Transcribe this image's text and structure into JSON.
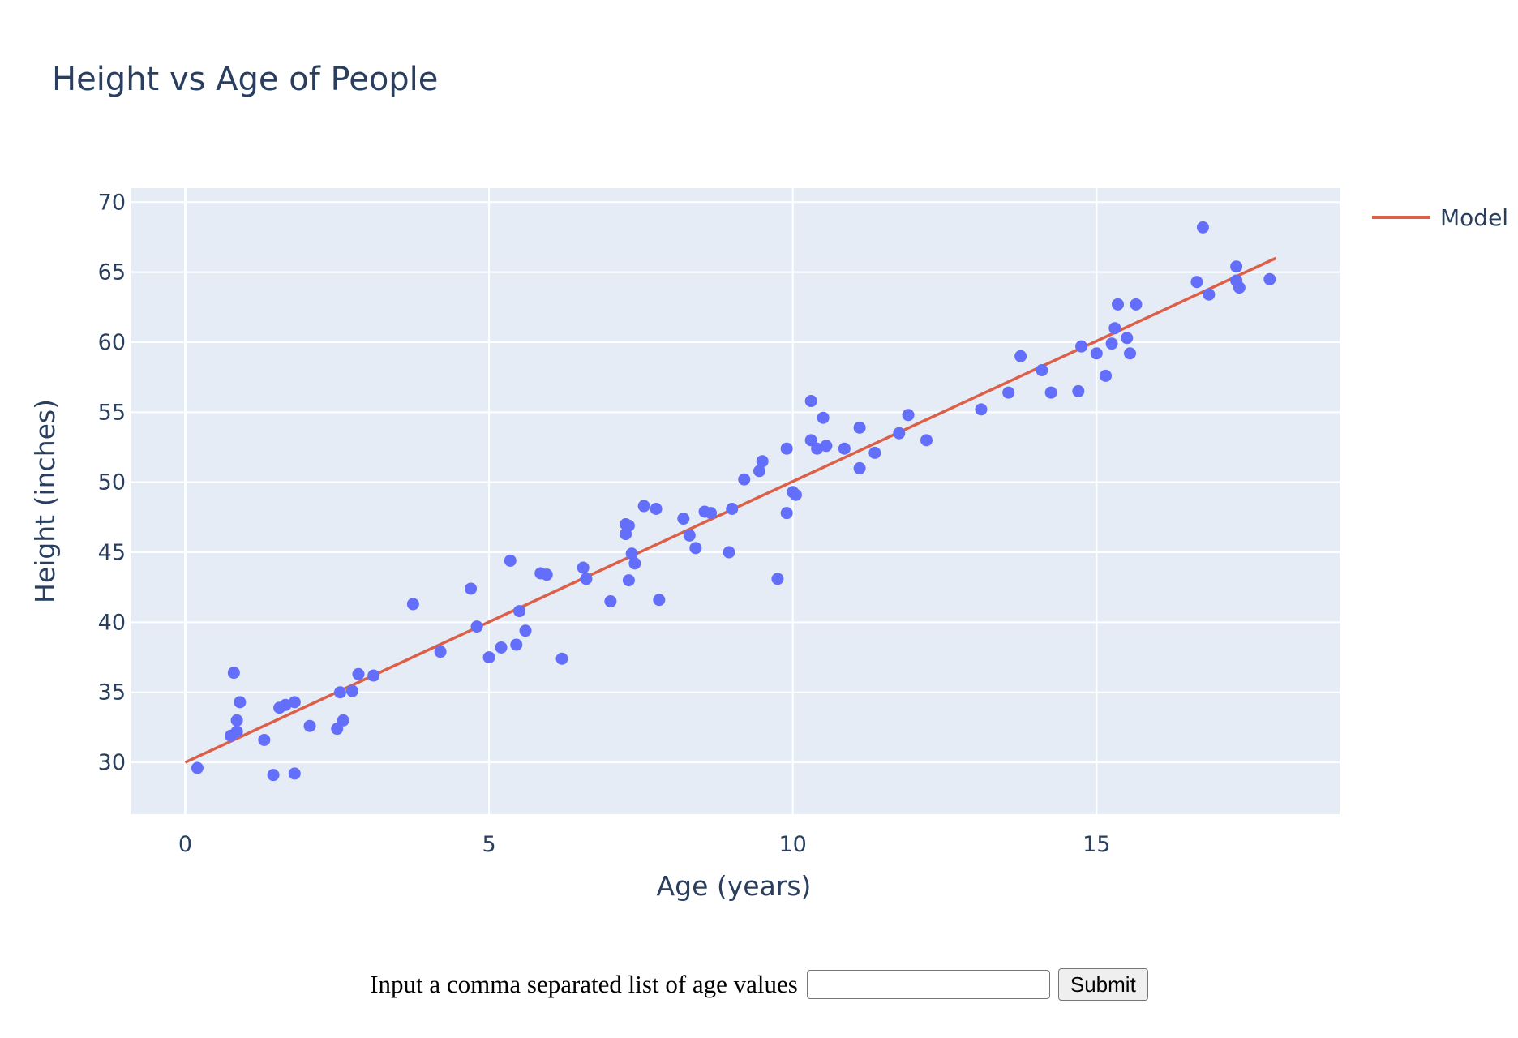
{
  "chart_data": {
    "type": "scatter",
    "title": "Height vs Age of People",
    "xlabel": "Age (years)",
    "ylabel": "Height (inches)",
    "xlim": [
      -0.9,
      19.0
    ],
    "ylim": [
      26.3,
      71.0
    ],
    "xticks": [
      0,
      5,
      10,
      15
    ],
    "yticks": [
      30,
      35,
      40,
      45,
      50,
      55,
      60,
      65,
      70
    ],
    "grid": true,
    "legend_position": "top-right",
    "colors": {
      "points": "#636efa",
      "model": "#dd5f48",
      "plot_bg": "#e5ecf6",
      "text": "#2a3f5f"
    },
    "points": {
      "x": [
        0.2,
        0.8,
        0.75,
        0.85,
        0.9,
        0.85,
        1.3,
        1.45,
        1.55,
        1.65,
        1.8,
        1.8,
        2.05,
        2.5,
        2.55,
        2.6,
        2.75,
        2.85,
        3.1,
        3.75,
        4.2,
        4.7,
        4.8,
        5.0,
        5.2,
        5.35,
        5.45,
        5.5,
        5.6,
        5.85,
        5.95,
        6.2,
        6.55,
        6.6,
        7.0,
        7.25,
        7.25,
        7.3,
        7.3,
        7.35,
        7.4,
        7.55,
        7.75,
        7.8,
        8.2,
        8.3,
        8.4,
        8.55,
        8.65,
        8.95,
        9.0,
        9.2,
        9.45,
        9.5,
        9.75,
        9.9,
        9.9,
        10.0,
        10.05,
        10.3,
        10.3,
        10.4,
        10.5,
        10.55,
        10.85,
        11.1,
        11.1,
        11.35,
        11.75,
        11.9,
        12.2,
        13.1,
        13.55,
        13.75,
        14.1,
        14.25,
        14.7,
        14.75,
        15.0,
        15.15,
        15.25,
        15.3,
        15.35,
        15.5,
        15.55,
        15.65,
        16.65,
        16.75,
        16.85,
        17.3,
        17.3,
        17.35,
        17.85
      ],
      "y": [
        29.6,
        36.4,
        31.9,
        33.0,
        34.3,
        32.2,
        31.6,
        29.1,
        33.9,
        34.1,
        34.3,
        29.2,
        32.6,
        32.4,
        35.0,
        33.0,
        35.1,
        36.3,
        36.2,
        41.3,
        37.9,
        42.4,
        39.7,
        37.5,
        38.2,
        44.4,
        38.4,
        40.8,
        39.4,
        43.5,
        43.4,
        37.4,
        43.9,
        43.1,
        41.5,
        46.3,
        47.0,
        43.0,
        46.9,
        44.9,
        44.2,
        48.3,
        48.1,
        41.6,
        47.4,
        46.2,
        45.3,
        47.9,
        47.8,
        45.0,
        48.1,
        50.2,
        50.8,
        51.5,
        43.1,
        52.4,
        47.8,
        49.3,
        49.1,
        55.8,
        53.0,
        52.4,
        54.6,
        52.6,
        52.4,
        53.9,
        51.0,
        52.1,
        53.5,
        54.8,
        53.0,
        55.2,
        56.4,
        59.0,
        58.0,
        56.4,
        56.5,
        59.7,
        59.2,
        57.6,
        59.9,
        61.0,
        62.7,
        60.3,
        59.2,
        62.7,
        64.3,
        68.2,
        63.4,
        65.4,
        64.4,
        63.9,
        64.5
      ]
    },
    "series": [
      {
        "name": "Model",
        "type": "line",
        "x": [
          0.0,
          17.95
        ],
        "y": [
          30.0,
          66.0
        ]
      }
    ]
  },
  "form": {
    "label": "Input a comma separated list of age values",
    "input_value": "",
    "submit_label": "Submit"
  }
}
